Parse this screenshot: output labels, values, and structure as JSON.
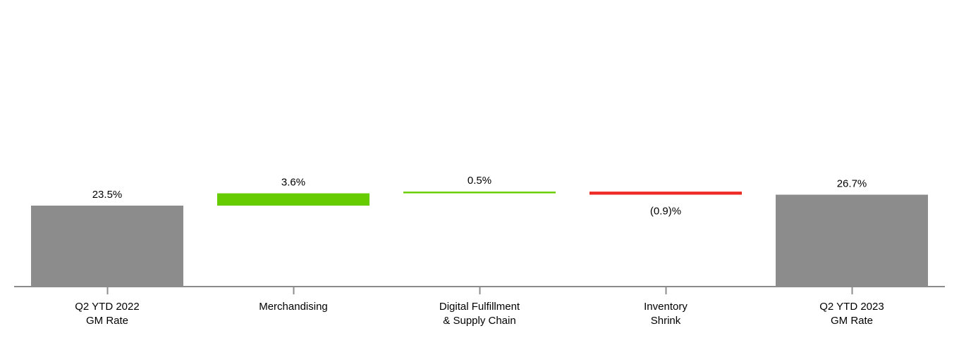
{
  "chart_data": {
    "type": "bar",
    "subtype": "waterfall",
    "categories": [
      [
        "Q2 YTD 2022",
        "GM Rate"
      ],
      [
        "Merchandising"
      ],
      [
        "Digital Fulfillment",
        "& Supply Chain"
      ],
      [
        "Inventory",
        "Shrink"
      ],
      [
        "Q2 YTD 2023",
        "GM Rate"
      ]
    ],
    "bars": [
      {
        "kind": "total",
        "value": 23.5,
        "label": "23.5%",
        "color": "#8c8c8c"
      },
      {
        "kind": "delta",
        "value": 3.6,
        "label": "3.6%",
        "color": "#66cc00"
      },
      {
        "kind": "delta",
        "value": 0.5,
        "label": "0.5%",
        "color": "#66cc00"
      },
      {
        "kind": "delta",
        "value": -0.9,
        "label": "(0.9)%",
        "color": "#ee2a24"
      },
      {
        "kind": "total",
        "value": 26.7,
        "label": "26.7%",
        "color": "#8c8c8c"
      }
    ],
    "title": "",
    "xlabel": "",
    "ylabel": "",
    "ylim": [
      0,
      38.3
    ],
    "grid": false,
    "legend": "none"
  }
}
